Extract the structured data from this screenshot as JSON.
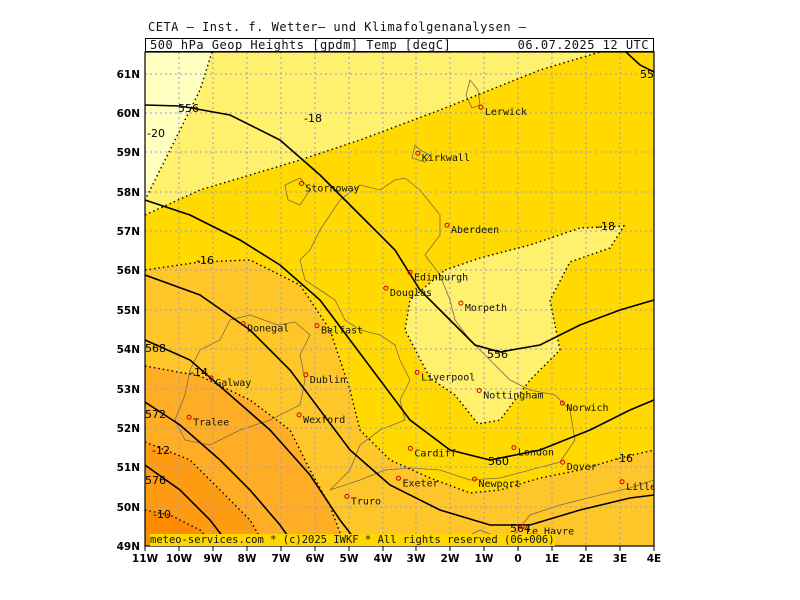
{
  "header": {
    "title": "CETA — Inst. f. Wetter— und Klimafolgenanalysen —",
    "subtitle": "500 hPa Geop Heights [gpdm] Temp [degC]",
    "datetime": "06.07.2025 12 UTC"
  },
  "footer": {
    "copyright": "meteo-services.com * (c)2025 IWKF * All rights reserved (06+006)"
  },
  "axes": {
    "x_ticks": [
      "11W",
      "10W",
      "9W",
      "8W",
      "7W",
      "6W",
      "5W",
      "4W",
      "3W",
      "2W",
      "1W",
      "0",
      "1E",
      "2E",
      "3E",
      "4E"
    ],
    "y_ticks": [
      "61N",
      "60N",
      "59N",
      "58N",
      "57N",
      "56N",
      "55N",
      "54N",
      "53N",
      "52N",
      "51N",
      "50N",
      "49N"
    ]
  },
  "colors": {
    "temp_below_m20": "#ffffc0",
    "temp_m20_m18": "#fff06e",
    "temp_m18_m16": "#ffd900",
    "temp_m16_m14": "#ffc62a",
    "temp_m14_m12": "#ffad25",
    "temp_m12_m10": "#ff9b10",
    "temp_above_m10": "#ff8c00",
    "city_marker": "#d00000"
  },
  "geopotential_labels": [
    "556",
    "556",
    "560",
    "564",
    "568",
    "572",
    "576",
    "55"
  ],
  "temperature_labels": [
    "-20",
    "-18",
    "-18",
    "-16",
    "-16",
    "-14",
    "-12",
    "-10"
  ],
  "cities": [
    {
      "name": "Lerwick",
      "lon": -1.1,
      "lat": 60.15
    },
    {
      "name": "Kirkwall",
      "lon": -2.96,
      "lat": 58.98
    },
    {
      "name": "Stornoway",
      "lon": -6.39,
      "lat": 58.21
    },
    {
      "name": "Aberdeen",
      "lon": -2.1,
      "lat": 57.15
    },
    {
      "name": "Edinburgh",
      "lon": -3.19,
      "lat": 55.95
    },
    {
      "name": "Douglas",
      "lon": -3.9,
      "lat": 55.55
    },
    {
      "name": "Morpeth",
      "lon": -1.69,
      "lat": 55.17
    },
    {
      "name": "Donegal",
      "lon": -8.11,
      "lat": 54.65
    },
    {
      "name": "Belfast",
      "lon": -5.93,
      "lat": 54.6
    },
    {
      "name": "Liverpool",
      "lon": -2.98,
      "lat": 53.41
    },
    {
      "name": "Dublin",
      "lon": -6.26,
      "lat": 53.35
    },
    {
      "name": "Galway",
      "lon": -9.05,
      "lat": 53.27
    },
    {
      "name": "Nottingham",
      "lon": -1.15,
      "lat": 52.95
    },
    {
      "name": "Norwich",
      "lon": 1.3,
      "lat": 52.63
    },
    {
      "name": "Wexford",
      "lon": -6.46,
      "lat": 52.33
    },
    {
      "name": "Tralee",
      "lon": -9.7,
      "lat": 52.27
    },
    {
      "name": "Cardiff",
      "lon": -3.18,
      "lat": 51.48
    },
    {
      "name": "London",
      "lon": -0.13,
      "lat": 51.5
    },
    {
      "name": "Dover",
      "lon": 1.31,
      "lat": 51.13
    },
    {
      "name": "Exeter",
      "lon": -3.53,
      "lat": 50.72
    },
    {
      "name": "Newport",
      "lon": -1.29,
      "lat": 50.7
    },
    {
      "name": "Lille",
      "lon": 3.06,
      "lat": 50.63
    },
    {
      "name": "Truro",
      "lon": -5.05,
      "lat": 50.26
    },
    {
      "name": "Le Havre",
      "lon": 0.11,
      "lat": 49.49
    }
  ]
}
